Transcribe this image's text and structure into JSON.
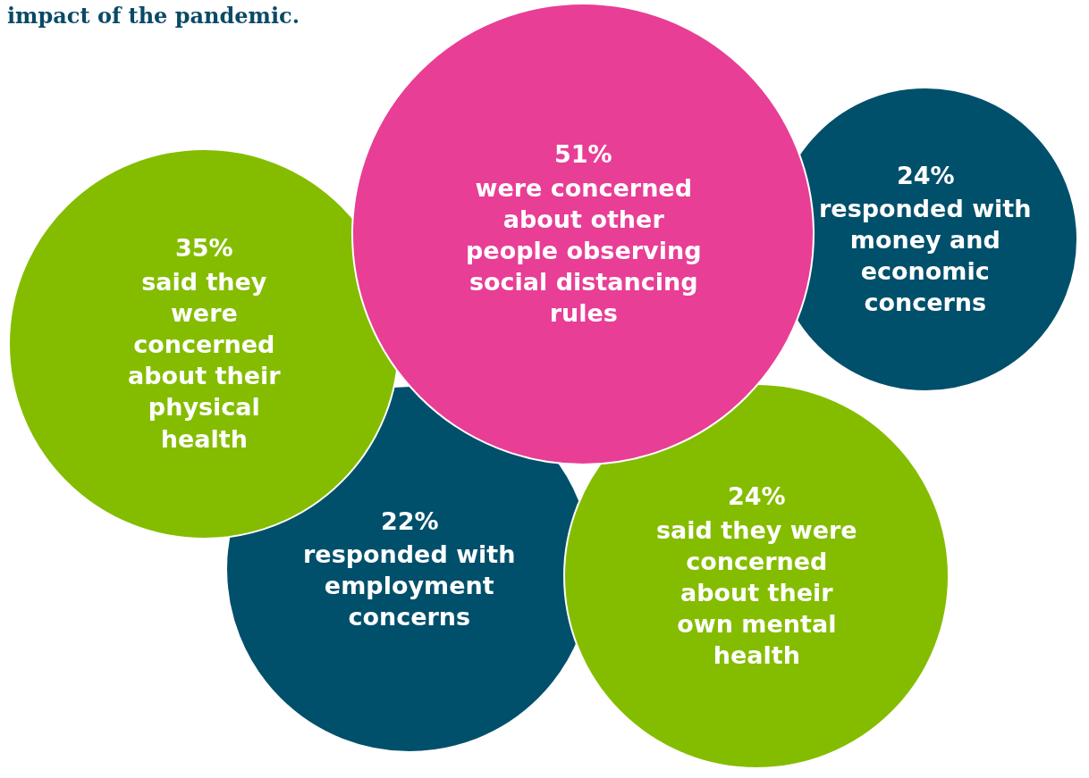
{
  "chart_data": {
    "type": "other",
    "title": "impact of the pandemic.",
    "categories": [
      "were concerned about other people observing social distancing rules",
      "responded with money and economic concerns",
      "said they were concerned about their physical health",
      "responded with employment concerns",
      "said they were concerned about their own mental health"
    ],
    "values": [
      51,
      24,
      35,
      22,
      24
    ],
    "value_labels": [
      "51%",
      "24%",
      "35%",
      "22%",
      "24%"
    ],
    "colors": [
      "#e83e96",
      "#00506b",
      "#84bd00",
      "#00506b",
      "#84bd00"
    ]
  }
}
